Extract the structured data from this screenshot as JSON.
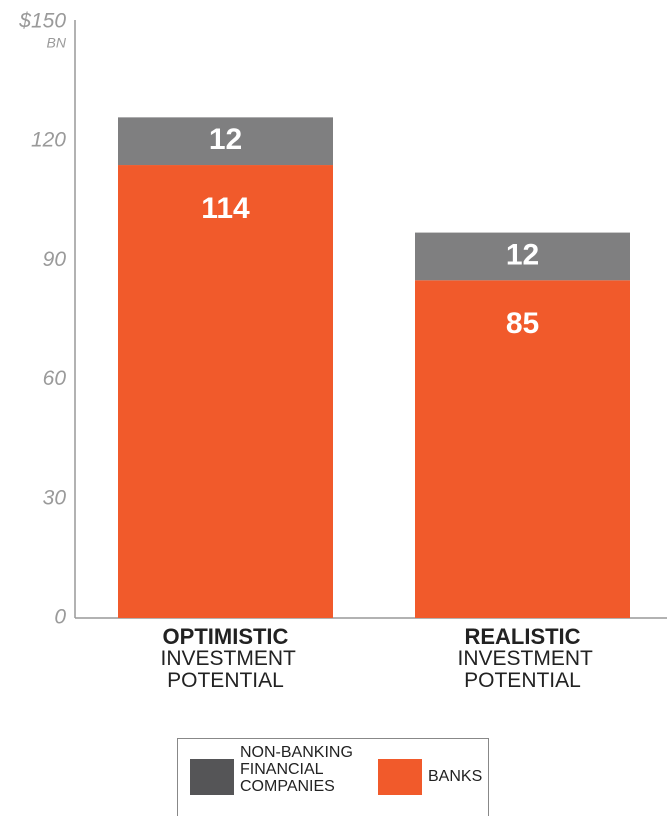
{
  "chart_data": {
    "type": "stacked_bar",
    "categories": [
      "OPTIMISTIC",
      "REALISTIC"
    ],
    "category_sublabels": [
      "INVESTMENT POTENTIAL",
      "INVESTMENT POTENTIAL"
    ],
    "series": [
      {
        "name": "BANKS",
        "color": "#f15a2b",
        "values": [
          114,
          85
        ]
      },
      {
        "name": "NON-BANKING FINANCIAL COMPANIES",
        "color": "#7f7f80",
        "legend_color": "#555557",
        "values": [
          12,
          12
        ]
      }
    ],
    "ylim": [
      0,
      150
    ],
    "yticks": [
      0,
      30,
      60,
      90,
      120,
      {
        "value": 150,
        "label": "$150"
      }
    ],
    "y_unit": "BN",
    "grid": false
  }
}
